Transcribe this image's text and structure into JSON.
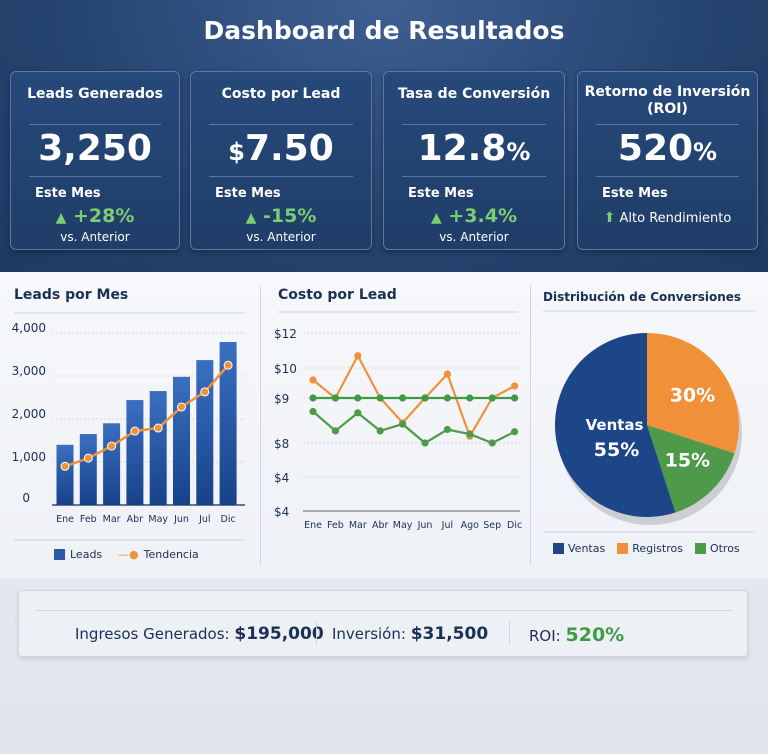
{
  "title": "Dashboard de Resultados",
  "cards": [
    {
      "label": "Leads Generados",
      "value": "3,250",
      "unit": "",
      "period": "Este Mes",
      "change": "+28%",
      "compare": "vs. Anterior"
    },
    {
      "label": "Costo por Lead",
      "value": "7.50",
      "unit": "$",
      "period": "Este Mes",
      "change": "-15%",
      "compare": "vs. Anterior"
    },
    {
      "label": "Tasa de Conversión",
      "value": "12.8",
      "unit": "%",
      "period": "Este Mes",
      "change": "+3.4%",
      "compare": "vs. Anterior"
    },
    {
      "label": "Retorno de Inversión (ROI)",
      "value": "520",
      "unit": "%",
      "period": "Este Mes",
      "change": "Alto Rendimiento",
      "compare": ""
    }
  ],
  "colors": {
    "bar": "#1f4f9a",
    "trend": "#f0913a",
    "orange": "#f0913a",
    "green": "#4e9a4a",
    "blue": "#1d4689",
    "positive": "#7ccc72"
  },
  "chart_data": [
    {
      "type": "bar",
      "title": "Leads por Mes",
      "categories": [
        "Ene",
        "Feb",
        "Mar",
        "Abr",
        "May",
        "Jun",
        "Jul",
        "Dic"
      ],
      "ylim": [
        0,
        4000
      ],
      "yticks": [
        "0",
        "1,000",
        "2,000",
        "3,000",
        "4,000"
      ],
      "grid": true,
      "legend": "bottom",
      "series": [
        {
          "name": "Leads",
          "type": "bar",
          "values": [
            1400,
            1650,
            1900,
            2440,
            2650,
            2980,
            3370,
            3790
          ]
        },
        {
          "name": "Tendencia",
          "type": "line",
          "values": [
            900,
            1090,
            1370,
            1720,
            1790,
            2280,
            2630,
            3250
          ]
        }
      ]
    },
    {
      "type": "line",
      "title": "Costo por Lead",
      "categories": [
        "Ene",
        "Feb",
        "Mar",
        "Abr",
        "May",
        "Jun",
        "Jul",
        "Ago",
        "Sep",
        "Dic"
      ],
      "yticks": [
        "$12",
        "$10",
        "$9",
        "$8",
        "$4",
        "$4"
      ],
      "grid": true,
      "series": [
        {
          "values": [
            9.6,
            9.0,
            10.7,
            9.0,
            8.45,
            9.0,
            9.8,
            8.15,
            9.0,
            9.4
          ],
          "color": "#f0913a"
        },
        {
          "values": [
            9.0,
            9.0,
            9.0,
            9.0,
            9.0,
            9.0,
            9.0,
            9.0,
            9.0,
            9.0
          ],
          "color": "#3f9a45"
        },
        {
          "values": [
            8.7,
            8.27,
            8.67,
            8.27,
            8.42,
            8.0,
            8.3,
            8.2,
            8.0,
            8.25
          ],
          "color": "#4e9a4a"
        }
      ]
    },
    {
      "type": "pie",
      "title": "Distribución de Conversiones",
      "legend": "bottom",
      "slices": [
        {
          "name": "Ventas",
          "value": 55,
          "label": "55%",
          "color": "#1d4689"
        },
        {
          "name": "Registros",
          "value": 30,
          "label": "30%",
          "color": "#f0913a"
        },
        {
          "name": "Otros",
          "value": 15,
          "label": "15%",
          "color": "#4e9a4a"
        }
      ]
    }
  ],
  "summary": {
    "revenue_label": "Ingresos Generados:",
    "revenue": "$195,000",
    "investment_label": "Inversión:",
    "investment": "$31,500",
    "roi_label": "ROI:",
    "roi": "520%"
  }
}
